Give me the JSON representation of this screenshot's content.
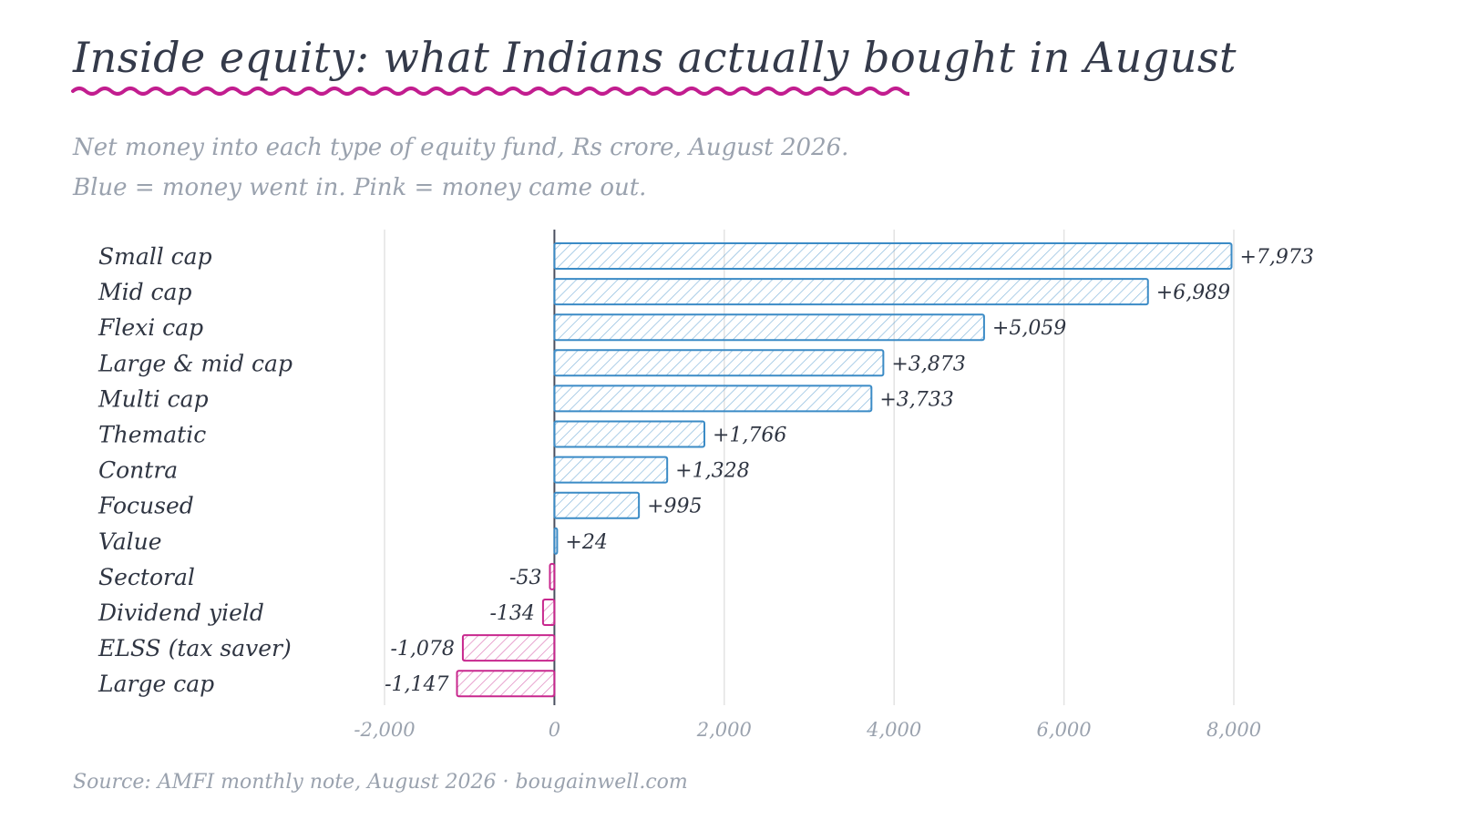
{
  "title": "Inside equity: what Indians actually bought in August",
  "subtitle_lines": [
    "Net money into each type of equity fund, Rs crore, August 2026.",
    "Blue = money went in. Pink = money came out."
  ],
  "source": "Source: AMFI monthly note, August 2026 · bougainwell.com",
  "colors": {
    "positive": "#3b8bc6",
    "negative": "#c8288e",
    "accent_underline": "#c21d8f",
    "grid": "#e3e3e3",
    "text": "#2f3542",
    "muted": "#9aa2ae"
  },
  "chart_data": {
    "type": "bar",
    "orientation": "horizontal",
    "categories": [
      "Small cap",
      "Mid cap",
      "Flexi cap",
      "Large & mid cap",
      "Multi cap",
      "Thematic",
      "Contra",
      "Focused",
      "Value",
      "Sectoral",
      "Dividend yield",
      "ELSS (tax saver)",
      "Large cap"
    ],
    "values": [
      7973,
      6989,
      5059,
      3873,
      3733,
      1766,
      1328,
      995,
      24,
      -53,
      -134,
      -1078,
      -1147
    ],
    "value_labels": [
      "+7,973",
      "+6,989",
      "+5,059",
      "+3,873",
      "+3,733",
      "+1,766",
      "+1,328",
      "+995",
      "+24",
      "-53",
      "-134",
      "-1,078",
      "-1,147"
    ],
    "xlim": [
      -2000,
      8000
    ],
    "xticks": [
      -2000,
      0,
      2000,
      4000,
      6000,
      8000
    ],
    "xtick_labels": [
      "-2,000",
      "0",
      "2,000",
      "4,000",
      "6,000",
      "8,000"
    ],
    "grid": true,
    "legend": "none"
  }
}
